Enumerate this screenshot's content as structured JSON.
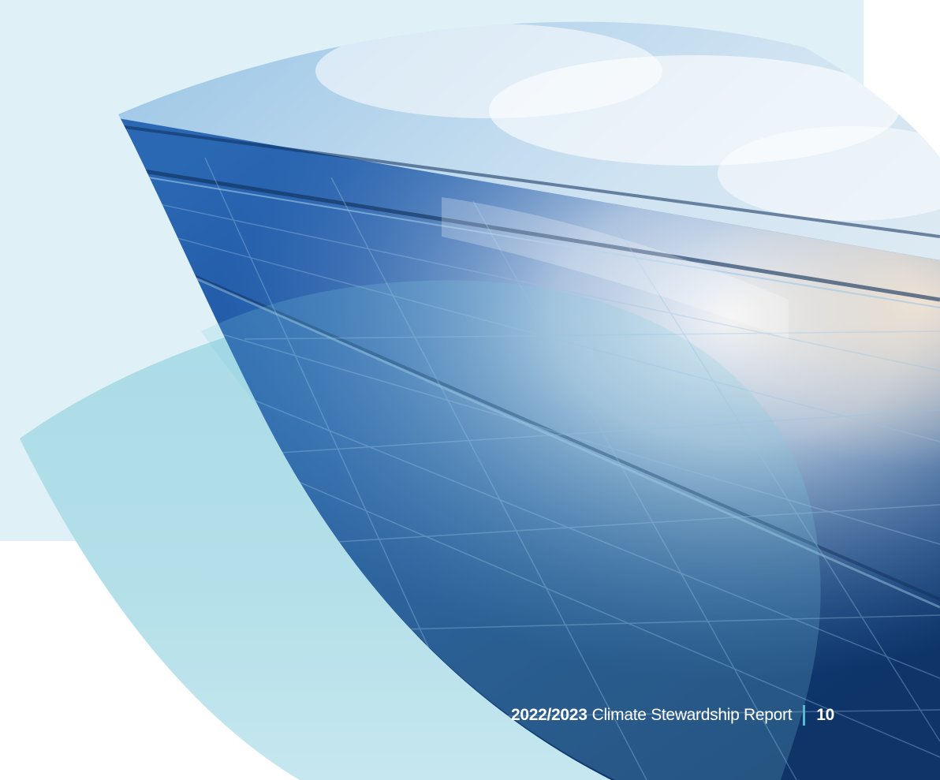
{
  "footer": {
    "year": "2022/2023",
    "report_title": "Climate Stewardship Report",
    "page_number": "10"
  },
  "colors": {
    "background_panel": "#dff1f6",
    "leaf_light": "#aadbe6",
    "leaf_lighter": "#c3e6ee",
    "panel_deep_blue": "#123f7c",
    "sky_blue": "#bcd9ec",
    "divider_accent": "#5ab9ce",
    "footer_text": "#ffffff"
  },
  "image": {
    "subject": "solar-panel-photo"
  }
}
